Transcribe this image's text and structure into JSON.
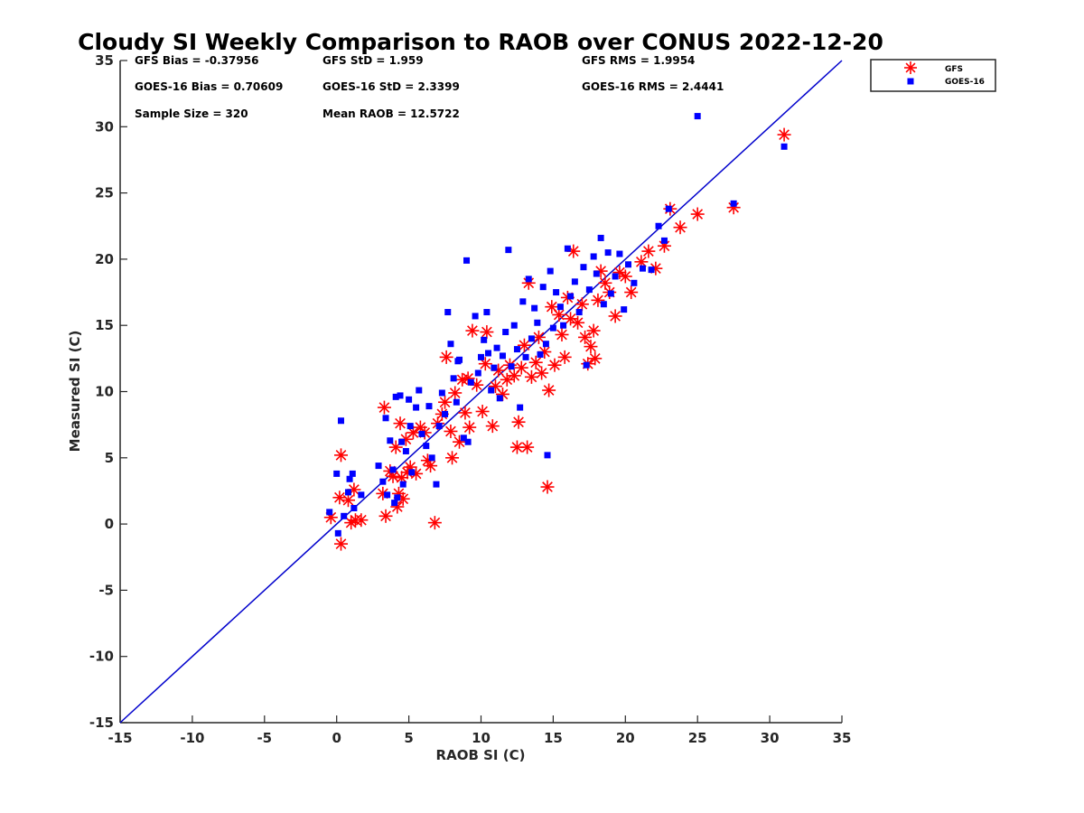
{
  "title": "Cloudy SI Weekly Comparison to RAOB over CONUS 2022-12-20",
  "stats": {
    "gfs_bias": "GFS Bias = -0.37956",
    "gfs_std": "GFS StD = 1.959",
    "gfs_rms": "GFS RMS = 1.9954",
    "goes_bias": "GOES-16 Bias = 0.70609",
    "goes_std": "GOES-16 StD = 2.3399",
    "goes_rms": "GOES-16 RMS = 2.4441",
    "sample_size": "Sample Size = 320",
    "mean_raob": "Mean RAOB = 12.5722"
  },
  "legend": {
    "gfs": "GFS",
    "goes": "GOES-16"
  },
  "colors": {
    "gfs": "#ff0000",
    "goes": "#0000ff",
    "line": "#0000cc"
  },
  "chart_data": {
    "type": "scatter",
    "title": "Cloudy SI Weekly Comparison to RAOB over CONUS 2022-12-20",
    "xlabel": "RAOB SI (C)",
    "ylabel": "Measured SI (C)",
    "xlim": [
      -15,
      35
    ],
    "ylim": [
      -15,
      35
    ],
    "xticks": [
      "-15",
      "-10",
      "-5",
      "0",
      "5",
      "10",
      "15",
      "20",
      "25",
      "30",
      "35"
    ],
    "yticks": [
      "-15",
      "-10",
      "-5",
      "0",
      "5",
      "10",
      "15",
      "20",
      "25",
      "30",
      "35"
    ],
    "grid": false,
    "legend_position": "top-right outside",
    "reference_line": {
      "type": "one-to-one",
      "from": [
        -15,
        -15
      ],
      "to": [
        35,
        35
      ]
    },
    "series": [
      {
        "name": "GFS",
        "marker": "asterisk",
        "points": [
          [
            -0.4,
            0.5
          ],
          [
            0.2,
            2.0
          ],
          [
            0.3,
            -1.5
          ],
          [
            0.3,
            5.2
          ],
          [
            0.8,
            1.8
          ],
          [
            1.0,
            0.1
          ],
          [
            1.2,
            2.6
          ],
          [
            1.3,
            0.3
          ],
          [
            1.7,
            0.3
          ],
          [
            3.2,
            2.3
          ],
          [
            3.3,
            8.8
          ],
          [
            3.4,
            0.6
          ],
          [
            3.7,
            4.0
          ],
          [
            3.9,
            3.6
          ],
          [
            4.1,
            5.8
          ],
          [
            4.2,
            1.3
          ],
          [
            4.3,
            2.3
          ],
          [
            4.4,
            7.6
          ],
          [
            4.5,
            3.5
          ],
          [
            4.6,
            1.9
          ],
          [
            4.8,
            6.4
          ],
          [
            4.9,
            3.9
          ],
          [
            5.1,
            4.3
          ],
          [
            5.3,
            6.9
          ],
          [
            5.5,
            3.8
          ],
          [
            5.8,
            7.3
          ],
          [
            6.1,
            6.9
          ],
          [
            6.3,
            4.8
          ],
          [
            6.5,
            4.4
          ],
          [
            6.8,
            0.1
          ],
          [
            7.0,
            7.6
          ],
          [
            7.3,
            8.3
          ],
          [
            7.5,
            9.2
          ],
          [
            7.6,
            12.6
          ],
          [
            7.9,
            7.0
          ],
          [
            8.0,
            5.0
          ],
          [
            8.2,
            9.9
          ],
          [
            8.5,
            6.2
          ],
          [
            8.7,
            10.9
          ],
          [
            8.9,
            8.4
          ],
          [
            9.1,
            11.0
          ],
          [
            9.2,
            7.3
          ],
          [
            9.4,
            14.6
          ],
          [
            9.7,
            10.5
          ],
          [
            10.1,
            8.5
          ],
          [
            10.3,
            12.1
          ],
          [
            10.4,
            14.5
          ],
          [
            10.8,
            7.4
          ],
          [
            11.0,
            10.4
          ],
          [
            11.2,
            11.6
          ],
          [
            11.5,
            9.8
          ],
          [
            11.8,
            10.9
          ],
          [
            12.0,
            12.0
          ],
          [
            12.3,
            11.2
          ],
          [
            12.5,
            5.8
          ],
          [
            12.6,
            7.7
          ],
          [
            12.8,
            11.8
          ],
          [
            13.0,
            13.5
          ],
          [
            13.2,
            5.8
          ],
          [
            13.3,
            18.2
          ],
          [
            13.5,
            11.1
          ],
          [
            13.8,
            12.2
          ],
          [
            14.0,
            14.1
          ],
          [
            14.2,
            11.4
          ],
          [
            14.4,
            13.0
          ],
          [
            14.6,
            2.8
          ],
          [
            14.7,
            10.1
          ],
          [
            14.9,
            16.4
          ],
          [
            15.1,
            12.0
          ],
          [
            15.4,
            15.8
          ],
          [
            15.6,
            14.3
          ],
          [
            15.8,
            12.6
          ],
          [
            16.0,
            17.1
          ],
          [
            16.2,
            15.5
          ],
          [
            16.4,
            20.6
          ],
          [
            16.7,
            15.2
          ],
          [
            17.0,
            16.6
          ],
          [
            17.2,
            14.1
          ],
          [
            17.4,
            12.1
          ],
          [
            17.6,
            13.4
          ],
          [
            17.8,
            14.6
          ],
          [
            17.9,
            12.5
          ],
          [
            18.1,
            16.9
          ],
          [
            18.3,
            19.1
          ],
          [
            18.6,
            18.2
          ],
          [
            18.9,
            17.5
          ],
          [
            19.3,
            15.7
          ],
          [
            19.6,
            19.0
          ],
          [
            20.0,
            18.7
          ],
          [
            20.4,
            17.5
          ],
          [
            21.1,
            19.8
          ],
          [
            21.6,
            20.6
          ],
          [
            22.1,
            19.3
          ],
          [
            22.7,
            21.0
          ],
          [
            23.1,
            23.8
          ],
          [
            23.8,
            22.4
          ],
          [
            25.0,
            23.4
          ],
          [
            27.5,
            23.9
          ],
          [
            31.0,
            29.4
          ]
        ]
      },
      {
        "name": "GOES-16",
        "marker": "square",
        "points": [
          [
            -0.5,
            0.9
          ],
          [
            0.0,
            3.8
          ],
          [
            0.1,
            -0.7
          ],
          [
            0.3,
            7.8
          ],
          [
            0.5,
            0.6
          ],
          [
            0.8,
            2.4
          ],
          [
            0.9,
            3.4
          ],
          [
            1.1,
            3.8
          ],
          [
            1.2,
            1.2
          ],
          [
            1.7,
            2.2
          ],
          [
            2.9,
            4.4
          ],
          [
            3.2,
            3.2
          ],
          [
            3.4,
            8.0
          ],
          [
            3.5,
            2.2
          ],
          [
            3.7,
            6.3
          ],
          [
            3.9,
            4.1
          ],
          [
            4.0,
            1.6
          ],
          [
            4.1,
            9.6
          ],
          [
            4.2,
            2.0
          ],
          [
            4.4,
            9.7
          ],
          [
            4.5,
            6.2
          ],
          [
            4.6,
            3.0
          ],
          [
            4.8,
            5.5
          ],
          [
            5.0,
            9.4
          ],
          [
            5.1,
            7.4
          ],
          [
            5.2,
            3.9
          ],
          [
            5.5,
            8.8
          ],
          [
            5.7,
            10.1
          ],
          [
            5.9,
            6.8
          ],
          [
            6.2,
            5.9
          ],
          [
            6.4,
            8.9
          ],
          [
            6.6,
            5.0
          ],
          [
            6.9,
            3.0
          ],
          [
            7.1,
            7.4
          ],
          [
            7.3,
            9.9
          ],
          [
            7.5,
            8.3
          ],
          [
            7.7,
            16.0
          ],
          [
            7.9,
            13.6
          ],
          [
            8.1,
            11.0
          ],
          [
            8.3,
            9.2
          ],
          [
            8.4,
            12.3
          ],
          [
            8.5,
            12.4
          ],
          [
            8.8,
            6.5
          ],
          [
            9.0,
            19.9
          ],
          [
            9.1,
            6.2
          ],
          [
            9.3,
            10.7
          ],
          [
            9.6,
            15.7
          ],
          [
            9.8,
            11.4
          ],
          [
            10.0,
            12.6
          ],
          [
            10.2,
            13.9
          ],
          [
            10.4,
            16.0
          ],
          [
            10.5,
            12.9
          ],
          [
            10.7,
            10.1
          ],
          [
            10.9,
            11.8
          ],
          [
            11.1,
            13.3
          ],
          [
            11.3,
            9.5
          ],
          [
            11.5,
            12.7
          ],
          [
            11.7,
            14.5
          ],
          [
            11.9,
            20.7
          ],
          [
            12.1,
            11.9
          ],
          [
            12.3,
            15.0
          ],
          [
            12.5,
            13.2
          ],
          [
            12.7,
            8.8
          ],
          [
            12.9,
            16.8
          ],
          [
            13.1,
            12.6
          ],
          [
            13.3,
            18.5
          ],
          [
            13.5,
            14.0
          ],
          [
            13.7,
            16.3
          ],
          [
            13.9,
            15.2
          ],
          [
            14.1,
            12.8
          ],
          [
            14.3,
            17.9
          ],
          [
            14.5,
            13.6
          ],
          [
            14.6,
            5.2
          ],
          [
            14.8,
            19.1
          ],
          [
            15.0,
            14.8
          ],
          [
            15.2,
            17.5
          ],
          [
            15.5,
            16.4
          ],
          [
            15.7,
            15.0
          ],
          [
            16.0,
            20.8
          ],
          [
            16.2,
            17.2
          ],
          [
            16.5,
            18.3
          ],
          [
            16.8,
            16.0
          ],
          [
            17.1,
            19.4
          ],
          [
            17.3,
            12.0
          ],
          [
            17.5,
            17.7
          ],
          [
            17.8,
            20.2
          ],
          [
            18.0,
            18.9
          ],
          [
            18.3,
            21.6
          ],
          [
            18.5,
            16.6
          ],
          [
            18.8,
            20.5
          ],
          [
            19.0,
            17.4
          ],
          [
            19.3,
            18.7
          ],
          [
            19.6,
            20.4
          ],
          [
            19.9,
            16.2
          ],
          [
            20.2,
            19.6
          ],
          [
            20.6,
            18.2
          ],
          [
            21.2,
            19.3
          ],
          [
            21.8,
            19.2
          ],
          [
            22.3,
            22.5
          ],
          [
            22.7,
            21.4
          ],
          [
            23.0,
            23.8
          ],
          [
            25.0,
            30.8
          ],
          [
            27.5,
            24.2
          ],
          [
            31.0,
            28.5
          ]
        ]
      }
    ]
  }
}
